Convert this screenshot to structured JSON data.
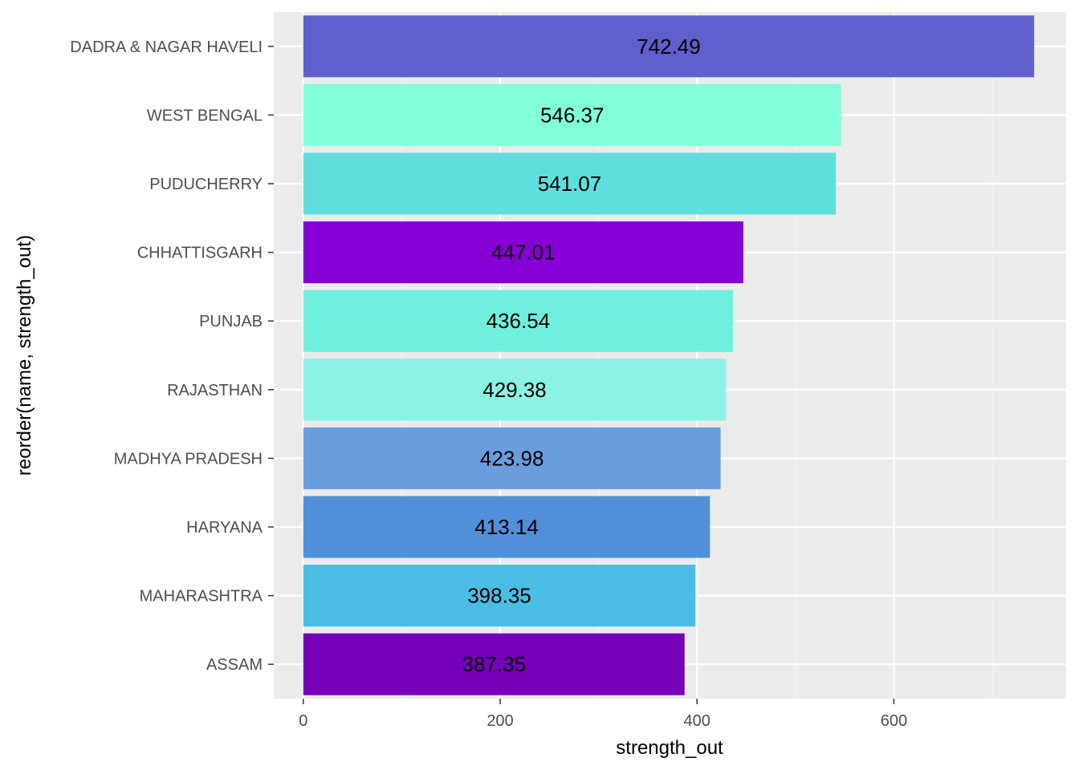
{
  "chart_data": {
    "type": "bar",
    "orientation": "horizontal",
    "xlabel": "strength_out",
    "ylabel": "reorder(name, strength_out)",
    "xlim": [
      -30,
      775
    ],
    "x_ticks": [
      0,
      200,
      400,
      600
    ],
    "x_minor_ticks": [
      100,
      300,
      500,
      700
    ],
    "grid": true,
    "legend": "none",
    "bars": [
      {
        "category": "DADRA & NAGAR HAVELI",
        "value": 742.49,
        "label": "742.49",
        "color": "#5f5fcd"
      },
      {
        "category": "WEST BENGAL",
        "value": 546.37,
        "label": "546.37",
        "color": "#80ffda"
      },
      {
        "category": "PUDUCHERRY",
        "value": 541.07,
        "label": "541.07",
        "color": "#5fdede"
      },
      {
        "category": "CHHATTISGARH",
        "value": 447.01,
        "label": "447.01",
        "color": "#8600d6"
      },
      {
        "category": "PUNJAB",
        "value": 436.54,
        "label": "436.54",
        "color": "#6ff0dc"
      },
      {
        "category": "RAJASTHAN",
        "value": 429.38,
        "label": "429.38",
        "color": "#8bf3e4"
      },
      {
        "category": "MADHYA PRADESH",
        "value": 423.98,
        "label": "423.98",
        "color": "#6b9edf"
      },
      {
        "category": "HARYANA",
        "value": 413.14,
        "label": "413.14",
        "color": "#518fd8"
      },
      {
        "category": "MAHARASHTRA",
        "value": 398.35,
        "label": "398.35",
        "color": "#49bde3"
      },
      {
        "category": "ASSAM",
        "value": 387.35,
        "label": "387.35",
        "color": "#7500b8"
      }
    ]
  },
  "colors": {
    "panel_background": "#ebebeb",
    "grid_major": "#ffffff",
    "grid_minor": "#f5f5f5",
    "tick_text": "#4d4d4d",
    "tick_mark": "#333333"
  }
}
